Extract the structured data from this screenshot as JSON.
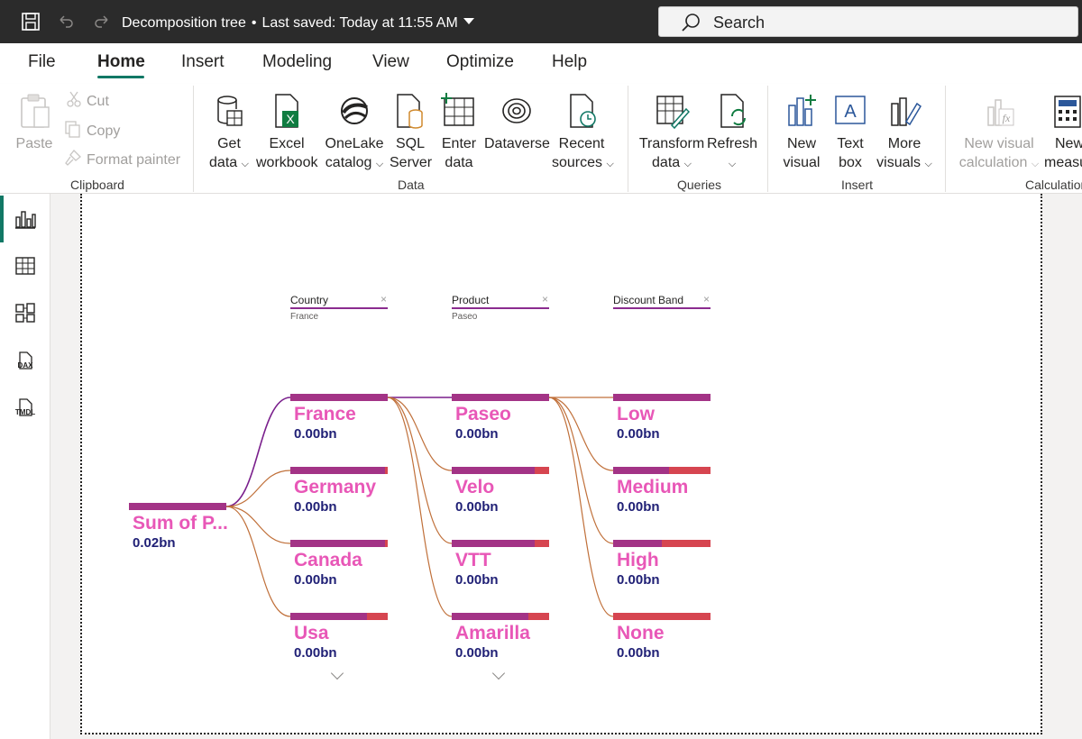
{
  "window": {
    "title": "Decomposition tree",
    "saved_status": "Last saved: Today at 11:55 AM",
    "search_placeholder": "Search"
  },
  "menu": {
    "tabs": [
      "File",
      "Home",
      "Insert",
      "Modeling",
      "View",
      "Optimize",
      "Help"
    ],
    "active": "Home"
  },
  "ribbon": {
    "clipboard": {
      "label": "Clipboard",
      "paste": "Paste",
      "cut": "Cut",
      "copy": "Copy",
      "format_painter": "Format painter"
    },
    "data": {
      "label": "Data",
      "get_data": [
        "Get",
        "data"
      ],
      "excel": [
        "Excel",
        "workbook"
      ],
      "onelake": [
        "OneLake",
        "catalog"
      ],
      "sql": [
        "SQL",
        "Server"
      ],
      "enter": [
        "Enter",
        "data"
      ],
      "dataverse": "Dataverse",
      "recent": [
        "Recent",
        "sources"
      ]
    },
    "queries": {
      "label": "Queries",
      "transform": [
        "Transform",
        "data"
      ],
      "refresh": "Refresh"
    },
    "insert": {
      "label": "Insert",
      "new_visual": [
        "New",
        "visual"
      ],
      "text_box": [
        "Text",
        "box"
      ],
      "more_visuals": [
        "More",
        "visuals"
      ]
    },
    "calculations": {
      "label": "Calculation",
      "new_visual_calc": [
        "New visual",
        "calculation"
      ],
      "new_measure": [
        "New",
        "measu"
      ]
    }
  },
  "leftnav": {
    "items": [
      "report-view-icon",
      "table-view-icon",
      "model-view-icon",
      "dax-query-icon",
      "tmdl-view-icon"
    ],
    "dax_label": "DAX",
    "tmdl_label": "TMDL"
  },
  "tree": {
    "root": {
      "label": "Sum of P...",
      "value": "0.02bn"
    },
    "levels": [
      {
        "header": "Country",
        "selected": "France",
        "nodes": [
          {
            "label": "France",
            "value": "0.00bn",
            "fill": 1.0
          },
          {
            "label": "Germany",
            "value": "0.00bn",
            "fill": 0.97
          },
          {
            "label": "Canada",
            "value": "0.00bn",
            "fill": 0.97
          },
          {
            "label": "Usa",
            "value": "0.00bn",
            "fill": 0.79
          }
        ]
      },
      {
        "header": "Product",
        "selected": "Paseo",
        "nodes": [
          {
            "label": "Paseo",
            "value": "0.00bn",
            "fill": 1.0
          },
          {
            "label": "Velo",
            "value": "0.00bn",
            "fill": 0.85
          },
          {
            "label": "VTT",
            "value": "0.00bn",
            "fill": 0.85
          },
          {
            "label": "Amarilla",
            "value": "0.00bn",
            "fill": 0.79
          }
        ]
      },
      {
        "header": "Discount Band",
        "selected": "",
        "nodes": [
          {
            "label": "Low",
            "value": "0.00bn",
            "fill": 1.0
          },
          {
            "label": "Medium",
            "value": "0.00bn",
            "fill": 0.57
          },
          {
            "label": "High",
            "value": "0.00bn",
            "fill": 0.5
          },
          {
            "label": "None",
            "value": "0.00bn",
            "fill": 0.0
          }
        ]
      }
    ]
  },
  "colors": {
    "accent": "#117865",
    "bar_fill": "#a33386",
    "bar_remainder": "#d64550",
    "node_label": "#e857b7",
    "node_value": "#1f1f75",
    "selected_link": "#7a1f8c",
    "link": "#c0703a"
  }
}
